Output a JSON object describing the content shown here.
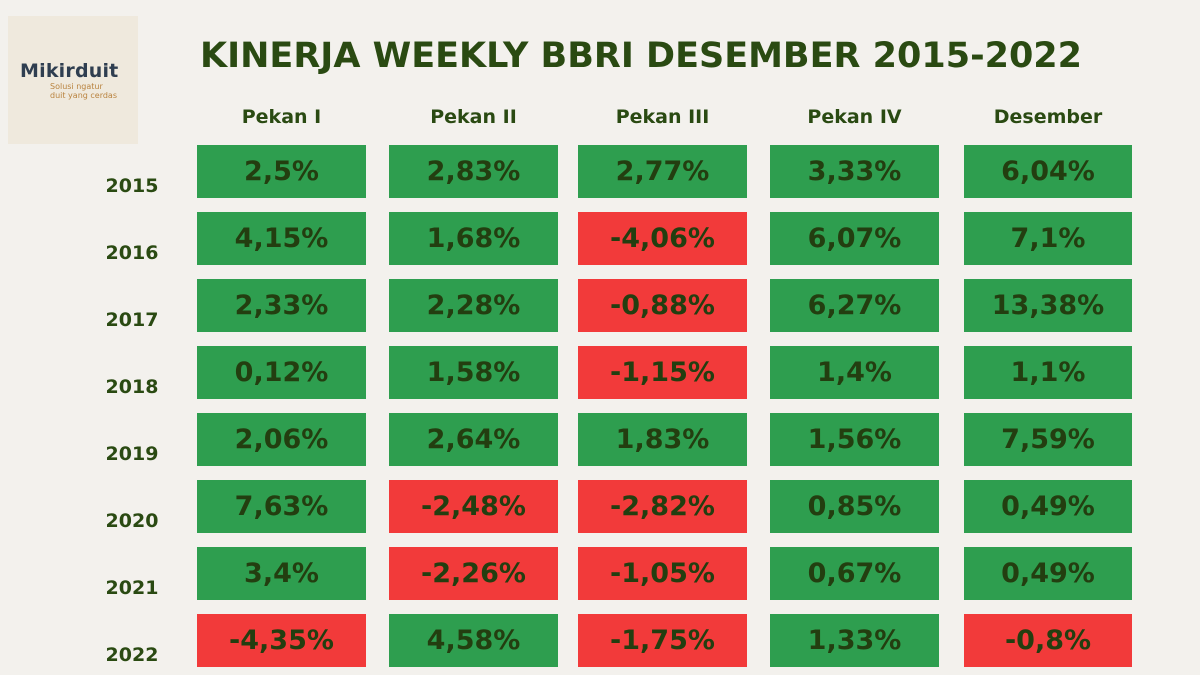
{
  "brand": {
    "name": "Mikirduit",
    "tagline_1": "Solusi ngatur",
    "tagline_2": "duit yang cerdas"
  },
  "colors": {
    "positive": "#2e9e4f",
    "negative": "#f23a3a",
    "text": "#2a4a12",
    "background": "#f3f1ed"
  },
  "chart_data": {
    "type": "table",
    "title": "KINERJA WEEKLY BBRI DESEMBER 2015-2022",
    "columns": [
      "Pekan I",
      "Pekan II",
      "Pekan III",
      "Pekan IV",
      "Desember"
    ],
    "rows": [
      {
        "year": "2015",
        "values": [
          "2,5%",
          "2,83%",
          "2,77%",
          "3,33%",
          "6,04%"
        ],
        "numeric": [
          2.5,
          2.83,
          2.77,
          3.33,
          6.04
        ]
      },
      {
        "year": "2016",
        "values": [
          "4,15%",
          "1,68%",
          "-4,06%",
          "6,07%",
          "7,1%"
        ],
        "numeric": [
          4.15,
          1.68,
          -4.06,
          6.07,
          7.1
        ]
      },
      {
        "year": "2017",
        "values": [
          "2,33%",
          "2,28%",
          "-0,88%",
          "6,27%",
          "13,38%"
        ],
        "numeric": [
          2.33,
          2.28,
          -0.88,
          6.27,
          13.38
        ]
      },
      {
        "year": "2018",
        "values": [
          "0,12%",
          "1,58%",
          "-1,15%",
          "1,4%",
          "1,1%"
        ],
        "numeric": [
          0.12,
          1.58,
          -1.15,
          1.4,
          1.1
        ]
      },
      {
        "year": "2019",
        "values": [
          "2,06%",
          "2,64%",
          "1,83%",
          "1,56%",
          "7,59%"
        ],
        "numeric": [
          2.06,
          2.64,
          1.83,
          1.56,
          7.59
        ]
      },
      {
        "year": "2020",
        "values": [
          "7,63%",
          "-2,48%",
          "-2,82%",
          "0,85%",
          "0,49%"
        ],
        "numeric": [
          7.63,
          -2.48,
          -2.82,
          0.85,
          0.49
        ]
      },
      {
        "year": "2021",
        "values": [
          "3,4%",
          "-2,26%",
          "-1,05%",
          "0,67%",
          "0,49%"
        ],
        "numeric": [
          3.4,
          -2.26,
          -1.05,
          0.67,
          0.49
        ]
      },
      {
        "year": "2022",
        "values": [
          "-4,35%",
          "4,58%",
          "-1,75%",
          "1,33%",
          "-0,8%"
        ],
        "numeric": [
          -4.35,
          4.58,
          -1.75,
          1.33,
          -0.8
        ]
      }
    ]
  }
}
